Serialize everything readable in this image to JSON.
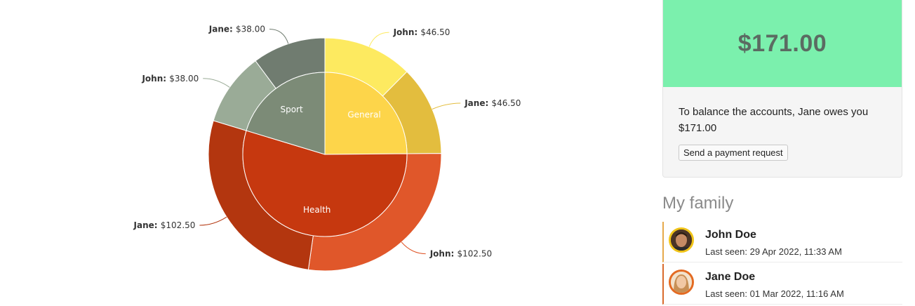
{
  "chart_data": {
    "type": "pie",
    "title": "",
    "inner": [
      {
        "name": "General",
        "value": 93.0,
        "color": "#fdd54a"
      },
      {
        "name": "Health",
        "value": 205.0,
        "color": "#c6380f"
      },
      {
        "name": "Sport",
        "value": 76.0,
        "color": "#7c8b77"
      }
    ],
    "outer": [
      {
        "label_name": "John:",
        "label_value": "$46.50",
        "value": 46.5,
        "category": "General",
        "color": "#fdea60"
      },
      {
        "label_name": "Jane:",
        "label_value": "$46.50",
        "value": 46.5,
        "category": "General",
        "color": "#e3bd3e"
      },
      {
        "label_name": "John:",
        "label_value": "$102.50",
        "value": 102.5,
        "category": "Health",
        "color": "#e0572a"
      },
      {
        "label_name": "Jane:",
        "label_value": "$102.50",
        "value": 102.5,
        "category": "Health",
        "color": "#b3360f"
      },
      {
        "label_name": "John:",
        "label_value": "$38.00",
        "value": 38.0,
        "category": "Sport",
        "color": "#9aab97"
      },
      {
        "label_name": "Jane:",
        "label_value": "$38.00",
        "value": 38.0,
        "category": "Sport",
        "color": "#707c70"
      }
    ]
  },
  "balance": {
    "amount": "$171.00",
    "text": "To balance the accounts, Jane owes you $171.00",
    "button_label": "Send a payment request",
    "accent_color": "#7bf0ad"
  },
  "family": {
    "title": "My family",
    "members": [
      {
        "name": "John Doe",
        "last_seen": "Last seen: 29 Apr 2022, 11:33 AM",
        "avatar_icon": "user-avatar-john",
        "ring_color": "#f0c419"
      },
      {
        "name": "Jane Doe",
        "last_seen": "Last seen: 01 Mar 2022, 11:16 AM",
        "avatar_icon": "user-avatar-jane",
        "ring_color": "#e36a22"
      }
    ]
  }
}
